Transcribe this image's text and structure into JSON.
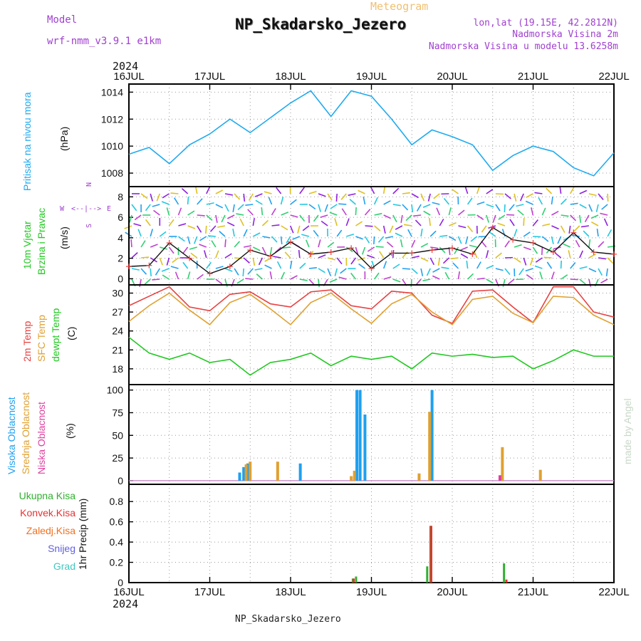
{
  "header": {
    "model_label": "Model",
    "model_value": "wrf-nmm_v3.9.1  e1km",
    "supertitle": "Meteogram",
    "title": "NP_Skadarsko_Jezero",
    "lonlat": "lon,lat (19.15E, 42.2812N)",
    "elev": "Nadmorska Visina 2m",
    "elev_model": "Nadmorska Visina u modelu 13.6258m",
    "footer": "NP_Skadarsko_Jezero",
    "credit": "made by Angel",
    "year_top": "2024",
    "year_bottom": "2024"
  },
  "colors": {
    "pressure": "#1eaaf0",
    "temp2m": "#e84040",
    "sfc": "#e0a030",
    "dewpt": "#20c820",
    "high_cloud": "#1ea0f0",
    "mid_cloud": "#e0a030",
    "low_cloud": "#e040a0",
    "total_rain": "#30b030",
    "conv_rain": "#e83030",
    "frz_rain": "#f07020",
    "snow": "#6060e0",
    "hail": "#40c8c0"
  },
  "chart_data": [
    {
      "type": "line",
      "panel": "pressure",
      "ylabel": "Pritisak na nivou mora",
      "unit": "(hPa)",
      "ylim": [
        1007,
        1014.6
      ],
      "yticks": [
        "1008",
        "1010",
        "1012",
        "1014"
      ],
      "x": [
        0,
        0.25,
        0.5,
        0.75,
        1,
        1.25,
        1.5,
        1.75,
        2,
        2.25,
        2.5,
        2.75,
        3,
        3.25,
        3.5,
        3.75,
        4,
        4.25,
        4.5,
        4.75,
        5,
        5.25,
        5.5,
        5.75,
        6
      ],
      "series": [
        {
          "name": "Pritisak na nivou mora",
          "values": [
            1009.4,
            1009.9,
            1008.7,
            1010.1,
            1010.9,
            1012.0,
            1011.0,
            1012.1,
            1013.2,
            1014.1,
            1012.2,
            1014.1,
            1013.7,
            1012.0,
            1010.1,
            1011.2,
            1010.7,
            1010.1,
            1008.2,
            1009.3,
            1010.0,
            1009.6,
            1008.4,
            1007.8,
            1009.5
          ]
        }
      ]
    },
    {
      "type": "line",
      "panel": "wind",
      "ylabel": "10m Vjetar Brzina i Pravac",
      "unit": "(m/s)",
      "ylim": [
        -0.6,
        9
      ],
      "yticks": [
        "0",
        "2",
        "4",
        "6",
        "8"
      ],
      "compass": {
        "n": "N",
        "s": "S",
        "w": "W",
        "e": "E"
      },
      "x": [
        0,
        0.25,
        0.5,
        0.75,
        1,
        1.25,
        1.5,
        1.75,
        2,
        2.25,
        2.5,
        2.75,
        3,
        3.25,
        3.5,
        3.75,
        4,
        4.25,
        4.5,
        4.75,
        5,
        5.25,
        5.5,
        5.75,
        6
      ],
      "series": [
        {
          "name": "10m Vjetar",
          "values": [
            1.2,
            1.3,
            3.5,
            2.0,
            0.5,
            1.2,
            2.8,
            2.2,
            3.6,
            2.4,
            2.6,
            3.0,
            1.0,
            2.5,
            2.5,
            2.8,
            3.0,
            2.4,
            5.0,
            3.8,
            3.5,
            2.6,
            4.5,
            2.6,
            2.4
          ]
        }
      ]
    },
    {
      "type": "line",
      "panel": "temperature",
      "ylabel": "2m Temp / SFC Temp / dewpt Temp",
      "unit": "(C)",
      "ylim": [
        15.5,
        31.3
      ],
      "yticks": [
        "18",
        "21",
        "24",
        "27",
        "30"
      ],
      "x": [
        0,
        0.25,
        0.5,
        0.75,
        1,
        1.25,
        1.5,
        1.75,
        2,
        2.25,
        2.5,
        2.75,
        3,
        3.25,
        3.5,
        3.75,
        4,
        4.25,
        4.5,
        4.75,
        5,
        5.25,
        5.5,
        5.75,
        6
      ],
      "series": [
        {
          "name": "2m Temp",
          "values": [
            28.0,
            29.5,
            31.0,
            27.8,
            27.2,
            29.8,
            30.2,
            28.3,
            27.8,
            30.2,
            30.5,
            28.0,
            27.5,
            30.3,
            30.0,
            26.5,
            25.2,
            30.3,
            30.5,
            27.8,
            25.3,
            31.0,
            31.0,
            27.0,
            26.2
          ]
        },
        {
          "name": "SFC Temp",
          "values": [
            25.5,
            28.0,
            30.0,
            27.3,
            25.0,
            28.5,
            29.8,
            27.5,
            25.0,
            28.5,
            30.0,
            27.5,
            25.2,
            28.3,
            29.8,
            27.0,
            25.0,
            29.0,
            29.5,
            26.8,
            25.3,
            29.5,
            29.3,
            26.5,
            25.0
          ]
        },
        {
          "name": "dewpt Temp",
          "values": [
            23.0,
            20.5,
            19.5,
            20.5,
            19.0,
            19.5,
            17.0,
            19.0,
            19.5,
            20.5,
            18.5,
            20.0,
            19.5,
            20.0,
            18.0,
            20.5,
            20.0,
            20.3,
            19.8,
            20.0,
            18.0,
            19.3,
            21.0,
            20.0,
            20.0
          ]
        }
      ]
    },
    {
      "type": "bar",
      "panel": "clouds",
      "ylabel": "Visoka Oblacnost / Srednja Oblacnost / Niska Oblacnost",
      "unit": "(%)",
      "ylim": [
        -4,
        106
      ],
      "yticks": [
        "0",
        "25",
        "50",
        "75",
        "100"
      ],
      "series": [
        {
          "name": "Visoka Oblacnost",
          "x": [
            1.37,
            1.42,
            1.47,
            2.12,
            2.82,
            2.86,
            2.92,
            3.75
          ],
          "values": [
            9,
            15,
            19,
            19,
            100,
            100,
            73,
            100
          ]
        },
        {
          "name": "Srednja Oblacnost",
          "x": [
            1.45,
            1.5,
            1.84,
            2.75,
            2.79,
            3.59,
            3.72,
            4.62,
            5.09
          ],
          "values": [
            18,
            21,
            21,
            5,
            11,
            8,
            76,
            37,
            12
          ]
        },
        {
          "name": "Niska Oblacnost",
          "x": [
            4.59
          ],
          "values": [
            6
          ]
        }
      ]
    },
    {
      "type": "bar",
      "panel": "precip",
      "ylabel": "1hr Precip",
      "unit": "(mm)",
      "ylim": [
        0,
        0.97
      ],
      "yticks": [
        "0",
        "0.2",
        "0.4",
        "0.6",
        "0.8"
      ],
      "legend": [
        "Ukupna Kisa",
        "Konvek.Kisa",
        "Zaledj.Kisa",
        "Snijeg",
        "Grad"
      ],
      "series": [
        {
          "name": "Ukupna Kisa",
          "x": [
            2.77,
            2.81,
            3.69,
            3.73,
            4.64
          ],
          "values": [
            0.04,
            0.06,
            0.16,
            0.56,
            0.19
          ]
        },
        {
          "name": "Konvek.Kisa",
          "x": [
            2.78,
            3.74,
            4.67
          ],
          "values": [
            0.04,
            0.56,
            0.03
          ]
        }
      ]
    }
  ],
  "x_axis": {
    "ticks": [
      "16JUL",
      "17JUL",
      "18JUL",
      "19JUL",
      "20JUL",
      "21JUL",
      "22JUL"
    ]
  }
}
